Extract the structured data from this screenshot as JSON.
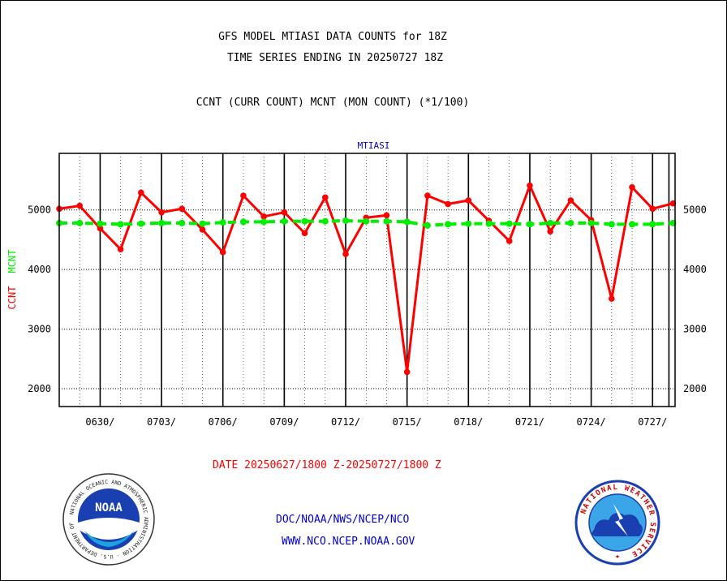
{
  "header": {
    "title_line1": "GFS MODEL MTIASI DATA COUNTS for 18Z",
    "title_line2": "TIME SERIES ENDING IN 20250727 18Z",
    "subtitle": "CCNT (CURR COUNT) MCNT (MON COUNT) (*1/100)"
  },
  "footer": {
    "date_range": "DATE 20250627/1800 Z-20250727/1800 Z",
    "org_line1": "DOC/NOAA/NWS/NCEP/NCO",
    "org_line2": "WWW.NCO.NCEP.NOAA.GOV",
    "noaa_logo_text": "NOAA",
    "noaa_ring_text": "NATIONAL OCEANIC AND ATMOSPHERIC ADMINISTRATION · U.S. DEPARTMENT OF COMMERCE ·",
    "nws_ring_text": "NATIONAL WEATHER SERVICE"
  },
  "colors": {
    "ccnt": "#ff0000",
    "mcnt": "#00ee00",
    "plot_label": "#0000cc",
    "footer_text": "#0000cc",
    "date_text": "#ff0000"
  },
  "chart_data": {
    "type": "line",
    "title": "MTIASI",
    "ylabel_ccnt": "CCNT",
    "ylabel_mcnt": "MCNT",
    "ylim": [
      1700,
      5950
    ],
    "yticks": [
      2000,
      3000,
      4000,
      5000
    ],
    "grid": true,
    "x_range": [
      0,
      30.1
    ],
    "xtick_labels": [
      "0630/",
      "0703/",
      "0706/",
      "0709/",
      "0712/",
      "0715/",
      "0718/",
      "0721/",
      "0724/",
      "0727/"
    ],
    "series": [
      {
        "name": "CCNT",
        "style": "solid",
        "values": [
          5020,
          5070,
          4690,
          4340,
          5290,
          4960,
          5020,
          4670,
          4290,
          5240,
          4890,
          4960,
          4610,
          5210,
          4260,
          4870,
          4910,
          2280,
          5240,
          5100,
          5160,
          4820,
          4480,
          5410,
          4640,
          5160,
          4830,
          3510,
          5380,
          5020,
          5110
        ]
      },
      {
        "name": "MCNT",
        "style": "dashed",
        "values": [
          4780,
          4780,
          4770,
          4760,
          4770,
          4780,
          4780,
          4770,
          4790,
          4800,
          4800,
          4810,
          4810,
          4810,
          4820,
          4810,
          4810,
          4800,
          4740,
          4760,
          4770,
          4770,
          4770,
          4760,
          4780,
          4780,
          4780,
          4760,
          4760,
          4760,
          4780
        ]
      }
    ]
  }
}
